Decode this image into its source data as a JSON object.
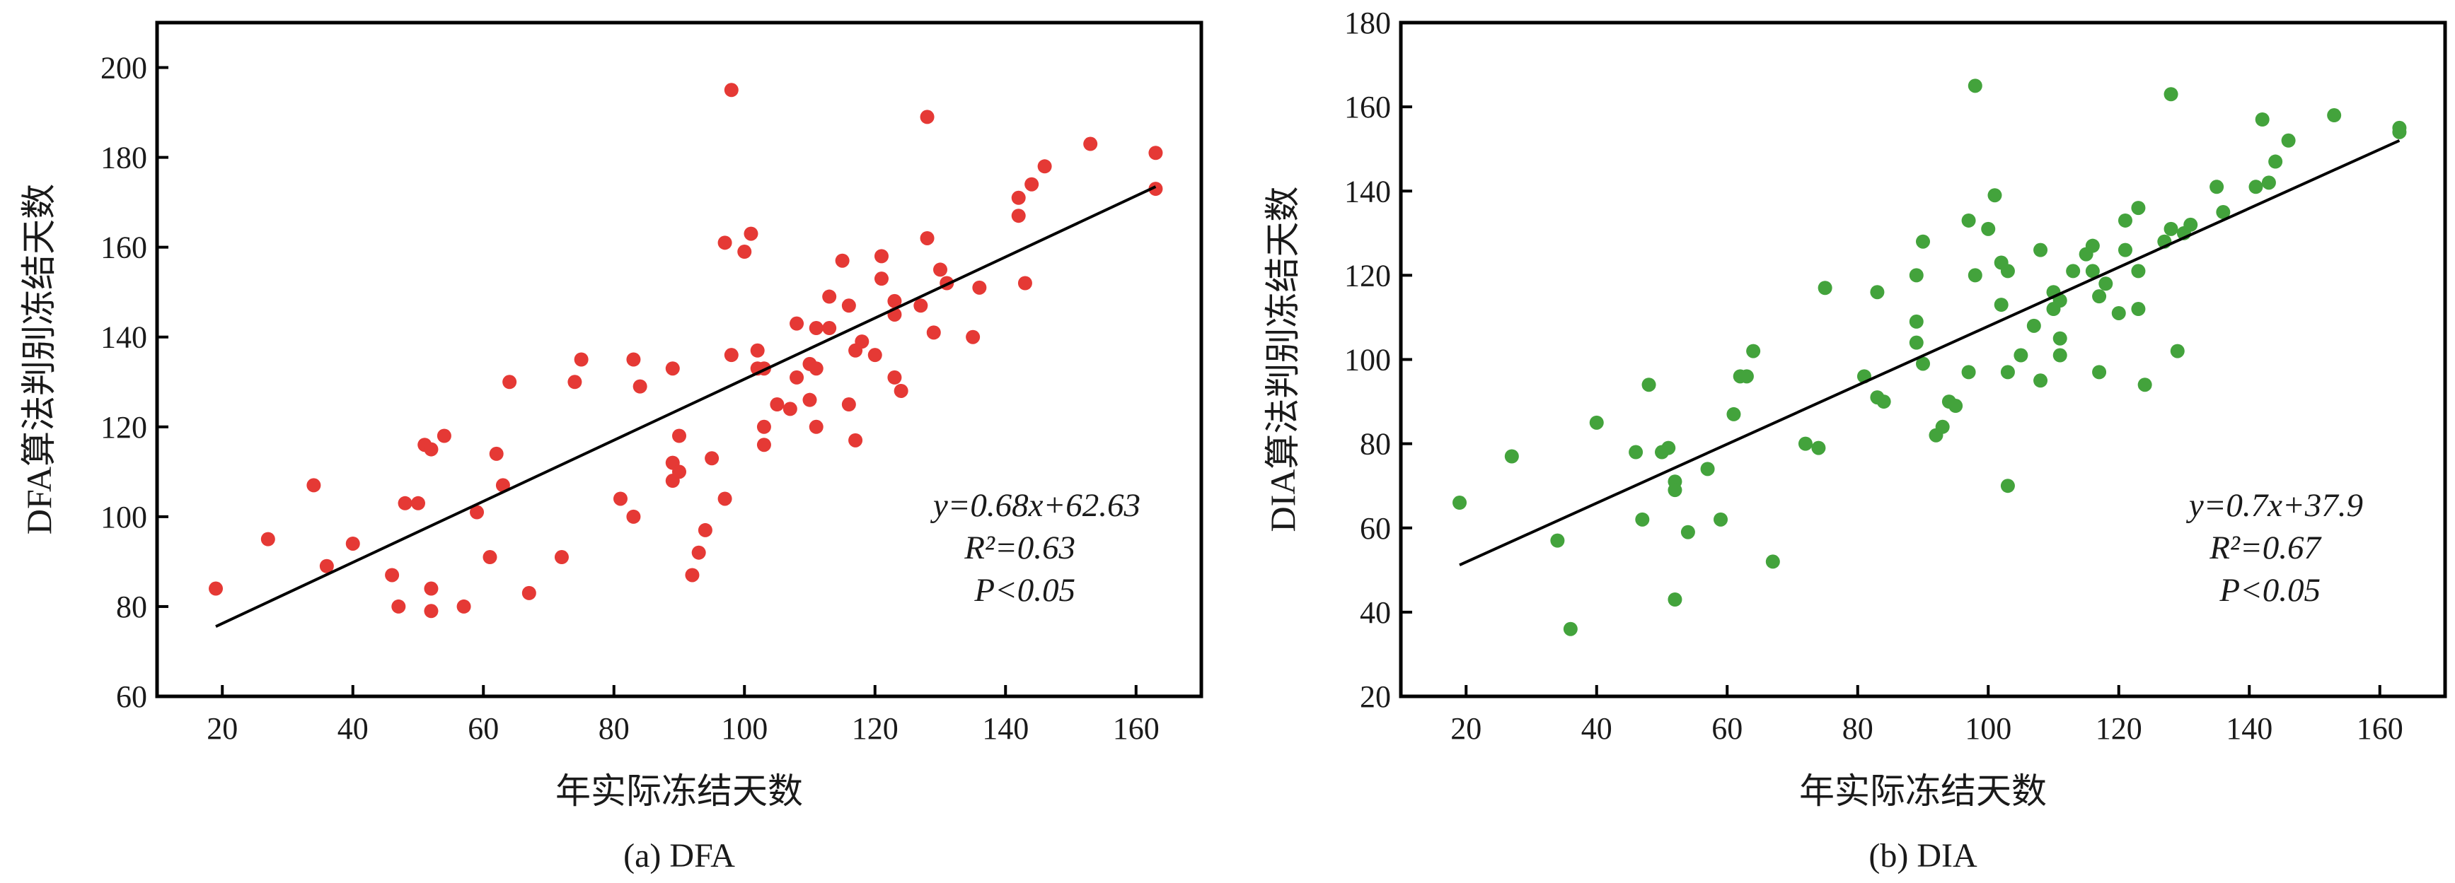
{
  "chart_data": [
    {
      "type": "scatter",
      "caption": "(a) DFA",
      "xlabel": "年实际冻结天数",
      "ylabel": "DFA算法判别冻结天数",
      "xlim": [
        10,
        170
      ],
      "ylim": [
        60,
        210
      ],
      "xticks": [
        20,
        40,
        60,
        80,
        100,
        120,
        140,
        160
      ],
      "yticks": [
        60,
        80,
        100,
        120,
        140,
        160,
        180,
        200
      ],
      "grid": false,
      "point_color": "#e53935",
      "series": [
        {
          "points": [
            [
              19,
              84
            ],
            [
              27,
              95
            ],
            [
              34,
              107
            ],
            [
              36,
              89
            ],
            [
              40,
              94
            ],
            [
              46,
              87
            ],
            [
              47,
              80
            ],
            [
              48,
              103
            ],
            [
              50,
              103
            ],
            [
              51,
              116
            ],
            [
              52,
              115
            ],
            [
              52,
              84
            ],
            [
              52,
              79
            ],
            [
              54,
              118
            ],
            [
              57,
              80
            ],
            [
              59,
              101
            ],
            [
              61,
              91
            ],
            [
              62,
              114
            ],
            [
              63,
              107
            ],
            [
              64,
              130
            ],
            [
              67,
              83
            ],
            [
              72,
              91
            ],
            [
              74,
              130
            ],
            [
              75,
              135
            ],
            [
              81,
              104
            ],
            [
              83,
              135
            ],
            [
              83,
              100
            ],
            [
              84,
              129
            ],
            [
              89,
              133
            ],
            [
              89,
              108
            ],
            [
              89,
              112
            ],
            [
              90,
              110
            ],
            [
              90,
              118
            ],
            [
              92,
              87
            ],
            [
              93,
              92
            ],
            [
              94,
              97
            ],
            [
              95,
              113
            ],
            [
              97,
              104
            ],
            [
              97,
              161
            ],
            [
              98,
              195
            ],
            [
              98,
              136
            ],
            [
              100,
              159
            ],
            [
              101,
              163
            ],
            [
              102,
              137
            ],
            [
              102,
              133
            ],
            [
              103,
              133
            ],
            [
              103,
              120
            ],
            [
              103,
              116
            ],
            [
              105,
              125
            ],
            [
              107,
              124
            ],
            [
              108,
              143
            ],
            [
              108,
              131
            ],
            [
              110,
              134
            ],
            [
              110,
              126
            ],
            [
              111,
              133
            ],
            [
              111,
              142
            ],
            [
              111,
              120
            ],
            [
              113,
              149
            ],
            [
              113,
              142
            ],
            [
              115,
              157
            ],
            [
              116,
              125
            ],
            [
              116,
              147
            ],
            [
              117,
              117
            ],
            [
              117,
              137
            ],
            [
              118,
              139
            ],
            [
              120,
              136
            ],
            [
              121,
              158
            ],
            [
              121,
              153
            ],
            [
              123,
              145
            ],
            [
              123,
              148
            ],
            [
              123,
              131
            ],
            [
              124,
              128
            ],
            [
              127,
              147
            ],
            [
              128,
              189
            ],
            [
              128,
              162
            ],
            [
              129,
              141
            ],
            [
              130,
              155
            ],
            [
              131,
              152
            ],
            [
              135,
              140
            ],
            [
              136,
              151
            ],
            [
              142,
              167
            ],
            [
              142,
              171
            ],
            [
              143,
              152
            ],
            [
              144,
              174
            ],
            [
              146,
              178
            ],
            [
              153,
              183
            ],
            [
              163,
              181
            ],
            [
              163,
              173
            ]
          ]
        }
      ],
      "fit": {
        "slope": 0.68,
        "intercept": 62.63,
        "x_range": [
          19,
          163
        ]
      },
      "annotations": {
        "equation": "y=0.68x+62.63",
        "r2": "R²=0.63",
        "p": "P<0.05"
      }
    },
    {
      "type": "scatter",
      "caption": "(b) DIA",
      "xlabel": "年实际冻结天数",
      "ylabel": "DIA算法判别冻结天数",
      "xlim": [
        10,
        170
      ],
      "ylim": [
        20,
        180
      ],
      "xticks": [
        20,
        40,
        60,
        80,
        100,
        120,
        140,
        160
      ],
      "yticks": [
        20,
        40,
        60,
        80,
        100,
        120,
        140,
        160,
        180
      ],
      "grid": false,
      "point_color": "#43a33c",
      "series": [
        {
          "points": [
            [
              19,
              66
            ],
            [
              27,
              77
            ],
            [
              34,
              57
            ],
            [
              36,
              36
            ],
            [
              40,
              85
            ],
            [
              46,
              78
            ],
            [
              47,
              62
            ],
            [
              48,
              94
            ],
            [
              50,
              78
            ],
            [
              51,
              79
            ],
            [
              52,
              71
            ],
            [
              52,
              69
            ],
            [
              52,
              43
            ],
            [
              54,
              59
            ],
            [
              57,
              74
            ],
            [
              59,
              62
            ],
            [
              61,
              87
            ],
            [
              62,
              96
            ],
            [
              63,
              96
            ],
            [
              64,
              102
            ],
            [
              67,
              52
            ],
            [
              72,
              80
            ],
            [
              74,
              79
            ],
            [
              75,
              117
            ],
            [
              81,
              96
            ],
            [
              83,
              116
            ],
            [
              83,
              91
            ],
            [
              84,
              90
            ],
            [
              89,
              120
            ],
            [
              89,
              104
            ],
            [
              89,
              109
            ],
            [
              90,
              128
            ],
            [
              90,
              99
            ],
            [
              92,
              82
            ],
            [
              93,
              84
            ],
            [
              94,
              90
            ],
            [
              95,
              89
            ],
            [
              97,
              97
            ],
            [
              97,
              133
            ],
            [
              98,
              165
            ],
            [
              98,
              120
            ],
            [
              100,
              131
            ],
            [
              101,
              139
            ],
            [
              102,
              123
            ],
            [
              102,
              113
            ],
            [
              103,
              121
            ],
            [
              103,
              97
            ],
            [
              103,
              70
            ],
            [
              105,
              101
            ],
            [
              107,
              108
            ],
            [
              108,
              126
            ],
            [
              108,
              95
            ],
            [
              110,
              112
            ],
            [
              110,
              116
            ],
            [
              111,
              101
            ],
            [
              111,
              105
            ],
            [
              111,
              114
            ],
            [
              113,
              121
            ],
            [
              115,
              125
            ],
            [
              116,
              127
            ],
            [
              116,
              121
            ],
            [
              117,
              115
            ],
            [
              117,
              97
            ],
            [
              118,
              118
            ],
            [
              120,
              111
            ],
            [
              121,
              126
            ],
            [
              121,
              133
            ],
            [
              123,
              136
            ],
            [
              123,
              112
            ],
            [
              123,
              121
            ],
            [
              124,
              94
            ],
            [
              127,
              128
            ],
            [
              128,
              163
            ],
            [
              128,
              131
            ],
            [
              129,
              102
            ],
            [
              130,
              130
            ],
            [
              131,
              132
            ],
            [
              135,
              141
            ],
            [
              136,
              135
            ],
            [
              141,
              141
            ],
            [
              142,
              157
            ],
            [
              143,
              142
            ],
            [
              144,
              147
            ],
            [
              146,
              152
            ],
            [
              153,
              158
            ],
            [
              163,
              155
            ],
            [
              163,
              154
            ]
          ]
        }
      ],
      "fit": {
        "slope": 0.7,
        "intercept": 37.9,
        "x_range": [
          19,
          163
        ]
      },
      "annotations": {
        "equation": "y=0.7x+37.9",
        "r2": "R²=0.67",
        "p": "P<0.05"
      }
    }
  ]
}
